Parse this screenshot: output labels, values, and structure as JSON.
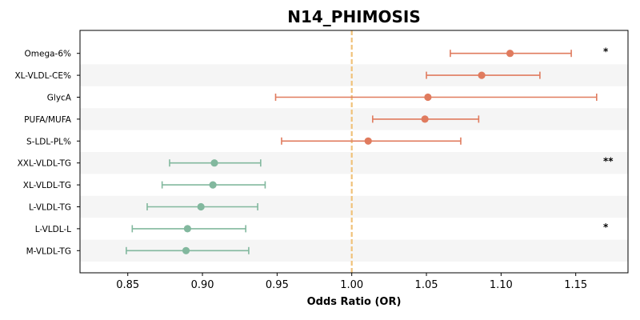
{
  "chart_data": {
    "type": "forest",
    "title": "N14_PHIMOSIS",
    "xlabel": "Odds Ratio (OR)",
    "xlim": [
      0.818,
      1.185
    ],
    "xticks": [
      0.85,
      0.9,
      0.95,
      1.0,
      1.05,
      1.1,
      1.15
    ],
    "xtick_labels": [
      "0.85",
      "0.90",
      "0.95",
      "1.00",
      "1.05",
      "1.10",
      "1.15"
    ],
    "reference_line": 1.0,
    "reference_color": "#f0c27a",
    "colors": {
      "increase": "#e07b5e",
      "decrease": "#82b89e",
      "band": "#f5f5f5"
    },
    "rows": [
      {
        "label": "Omega-6%",
        "or": 1.106,
        "lower": 1.066,
        "upper": 1.147,
        "sig": "*",
        "direction": "increase"
      },
      {
        "label": "XL-VLDL-CE%",
        "or": 1.087,
        "lower": 1.05,
        "upper": 1.126,
        "sig": "",
        "direction": "increase"
      },
      {
        "label": "GlycA",
        "or": 1.051,
        "lower": 0.949,
        "upper": 1.164,
        "sig": "",
        "direction": "increase"
      },
      {
        "label": "PUFA/MUFA",
        "or": 1.049,
        "lower": 1.014,
        "upper": 1.085,
        "sig": "",
        "direction": "increase"
      },
      {
        "label": "S-LDL-PL%",
        "or": 1.011,
        "lower": 0.953,
        "upper": 1.073,
        "sig": "",
        "direction": "increase"
      },
      {
        "label": "XXL-VLDL-TG",
        "or": 0.908,
        "lower": 0.878,
        "upper": 0.939,
        "sig": "**",
        "direction": "decrease"
      },
      {
        "label": "XL-VLDL-TG",
        "or": 0.907,
        "lower": 0.873,
        "upper": 0.942,
        "sig": "",
        "direction": "decrease"
      },
      {
        "label": "L-VLDL-TG",
        "or": 0.899,
        "lower": 0.863,
        "upper": 0.937,
        "sig": "",
        "direction": "decrease"
      },
      {
        "label": "L-VLDL-L",
        "or": 0.89,
        "lower": 0.853,
        "upper": 0.929,
        "sig": "*",
        "direction": "decrease"
      },
      {
        "label": "M-VLDL-TG",
        "or": 0.889,
        "lower": 0.849,
        "upper": 0.931,
        "sig": "",
        "direction": "decrease"
      }
    ]
  }
}
